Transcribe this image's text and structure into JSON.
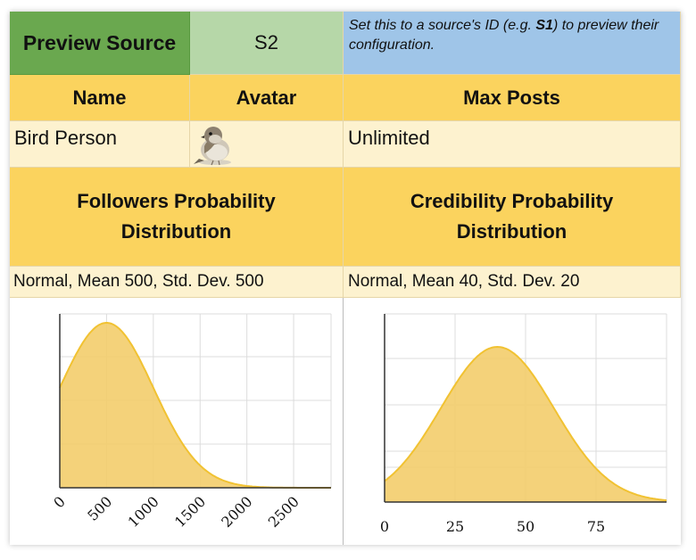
{
  "preview": {
    "label": "Preview Source",
    "value": "S2",
    "note_prefix": "Set this to a source's ID (e.g. ",
    "note_bold": "S1",
    "note_suffix": ") to preview their configuration."
  },
  "columns": {
    "name": "Name",
    "avatar": "Avatar",
    "max_posts": "Max Posts"
  },
  "source": {
    "name": "Bird Person",
    "avatar_icon": "bird-avatar",
    "max_posts": "Unlimited"
  },
  "distributions": {
    "followers_header": "Followers Probability Distribution",
    "credibility_header": "Credibility Probability Distribution",
    "followers_value": "Normal, Mean 500, Std. Dev. 500",
    "credibility_value": "Normal, Mean 40, Std. Dev. 20"
  },
  "colors": {
    "preview_label_bg": "#6aa84f",
    "preview_value_bg": "#b6d7a8",
    "note_bg": "#9fc5e8",
    "header_bg": "#fbd35e",
    "value_bg": "#fdf2cf",
    "curve_fill": "#f3cd6c",
    "curve_stroke": "#f1c232"
  },
  "chart_data": [
    {
      "type": "area",
      "distribution": "normal",
      "mean": 500,
      "std_dev": 500,
      "xlim": [
        0,
        2900
      ],
      "xticks": [
        "0",
        "500",
        "1000",
        "1500",
        "2000",
        "2500"
      ],
      "xtick_values": [
        0,
        500,
        1000,
        1500,
        2000,
        2500
      ],
      "tick_rotation": -45,
      "grid": true
    },
    {
      "type": "area",
      "distribution": "normal",
      "mean": 40,
      "std_dev": 20,
      "xlim": [
        0,
        100
      ],
      "xticks": [
        "0",
        "25",
        "50",
        "75"
      ],
      "xtick_values": [
        0,
        25,
        50,
        75
      ],
      "tick_rotation": 0,
      "grid": true
    }
  ]
}
